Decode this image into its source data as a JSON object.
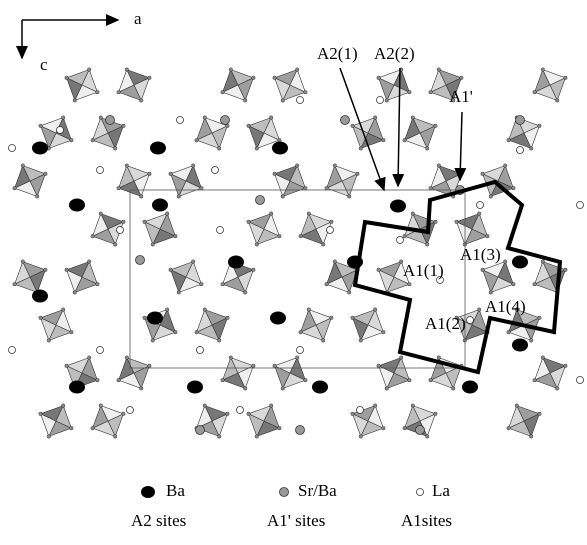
{
  "axes": {
    "a": "a",
    "c": "c"
  },
  "site_labels": {
    "a2_1": "A2(1)",
    "a2_2": "A2(2)",
    "a1_prime": "A1'",
    "a1_1": "A1(1)",
    "a1_3": "A1(3)",
    "a1_4": "A1(4)",
    "a1_2": "A1(2)"
  },
  "legend": [
    {
      "name": "Ba",
      "site": "A2 sites"
    },
    {
      "name": "Sr/Ba",
      "site": "A1' sites"
    },
    {
      "name": "La",
      "site": "A1sites"
    }
  ]
}
